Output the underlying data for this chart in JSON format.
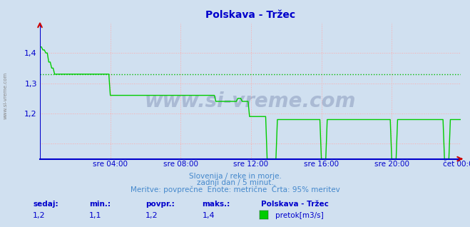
{
  "title": "Polskava - Tržec",
  "bg_color": "#d0e0f0",
  "plot_bg_color": "#d0e0f0",
  "line_color": "#00cc00",
  "avg_line_color": "#00bb00",
  "avg_value": 1.33,
  "grid_color": "#ffaaaa",
  "x_axis_color": "#0000cc",
  "y_axis_color": "#0000cc",
  "arrow_color": "#cc0000",
  "ylim_min": 1.05,
  "ylim_max": 1.5,
  "yticks": [
    1.2,
    1.3,
    1.4
  ],
  "x_labels": [
    "sre 04:00",
    "sre 08:00",
    "sre 12:00",
    "sre 16:00",
    "sre 20:00",
    "čet 00:00"
  ],
  "total_points": 288,
  "subtitle1": "Slovenija / reke in morje.",
  "subtitle2": "zadnji dan / 5 minut.",
  "subtitle3": "Meritve: povprečne  Enote: metrične  Črta: 95% meritev",
  "legend_label": "pretok[m3/s]",
  "station_label": "Polskava - Tržec",
  "stat_sedaj": "1,2",
  "stat_min": "1,1",
  "stat_povpr": "1,2",
  "stat_maks": "1,4",
  "watermark": "www.si-vreme.com",
  "title_color": "#0000cc",
  "subtitle_color": "#4488cc",
  "label_color": "#0000cc"
}
